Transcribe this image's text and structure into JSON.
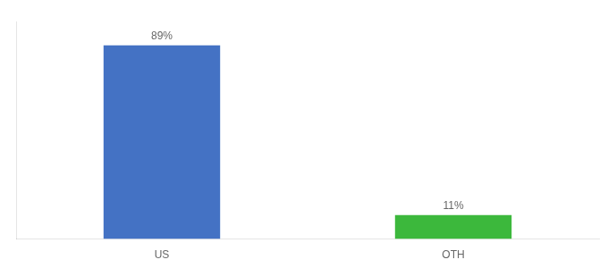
{
  "chart_data": {
    "type": "bar",
    "categories": [
      "US",
      "OTH"
    ],
    "values": [
      89,
      11
    ],
    "value_labels": [
      "89%",
      "11%"
    ],
    "colors": [
      "#4472c4",
      "#3cb83c"
    ],
    "data_labels": true,
    "ylim": [
      0,
      100
    ],
    "grid": false,
    "tick_labels": "x"
  }
}
